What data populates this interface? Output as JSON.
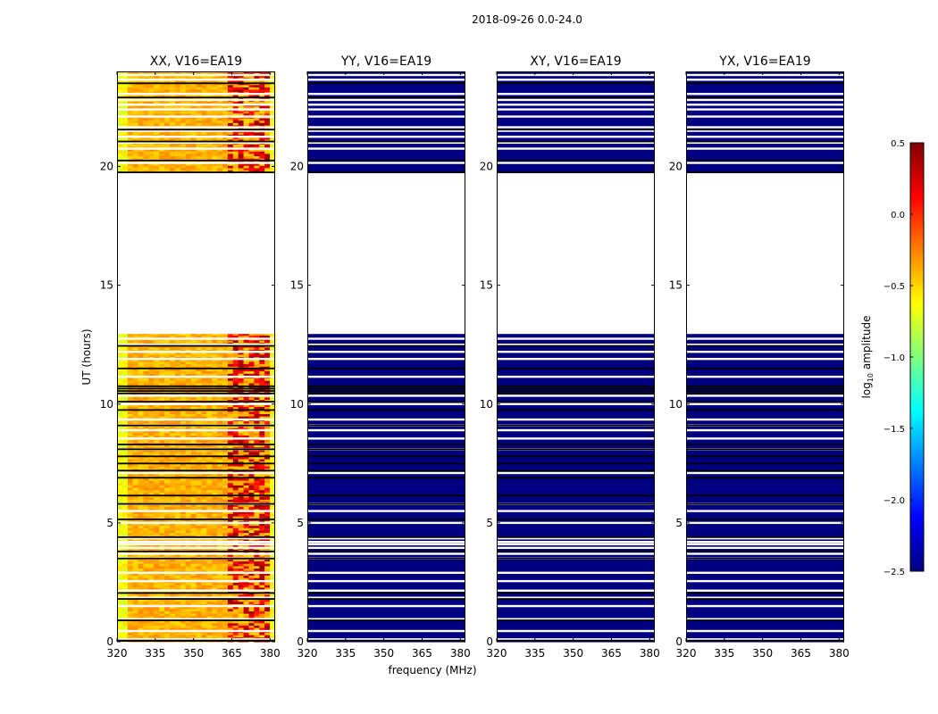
{
  "figure_title": "2018-09-26 0.0-24.0",
  "chart_data": {
    "type": "heatmap",
    "title": "2018-09-26 0.0-24.0",
    "xlabel": "frequency (MHz)",
    "ylabel": "UT (hours)",
    "xlim": [
      320,
      382
    ],
    "ylim": [
      0,
      24
    ],
    "x_ticks": [
      320,
      335,
      350,
      365,
      380
    ],
    "y_ticks": [
      0,
      5,
      10,
      15,
      20
    ],
    "data_time_ranges": [
      [
        0,
        12.95
      ],
      [
        19.75,
        24
      ]
    ],
    "panels": [
      {
        "title": "XX, V16=EA19",
        "pol": "XX",
        "baseline": "V16=EA19",
        "log10_amplitude_typical": -0.4,
        "log10_amplitude_max": 0.5,
        "bright_band_mhz": [
          363,
          380
        ]
      },
      {
        "title": "YY, V16=EA19",
        "pol": "YY",
        "baseline": "V16=EA19",
        "log10_amplitude_typical": -2.5
      },
      {
        "title": "XY, V16=EA19",
        "pol": "XY",
        "baseline": "V16=EA19",
        "log10_amplitude_typical": -2.5
      },
      {
        "title": "YX, V16=EA19",
        "pol": "YX",
        "baseline": "V16=EA19",
        "log10_amplitude_typical": -2.5
      }
    ],
    "white_gap_rows_ut": [
      0.1,
      0.45,
      0.95,
      1.5,
      1.85,
      2.15,
      2.55,
      2.9,
      3.5,
      3.7,
      3.95,
      4.1,
      4.2,
      4.35,
      5.0,
      5.5,
      5.8,
      7.1,
      8.1,
      8.55,
      8.9,
      9.1,
      9.35,
      10.0,
      10.35,
      11.15,
      11.9,
      12.2,
      12.5,
      12.75,
      20.15,
      20.75,
      21.0,
      21.25,
      21.5,
      21.65,
      22.1,
      22.4,
      22.6,
      22.8,
      23.05,
      23.65,
      23.85
    ],
    "black_flag_rows_ut": [
      0.05,
      0.9,
      1.8,
      2.05,
      3.5,
      3.8,
      4.4,
      5.15,
      5.8,
      6.15,
      6.9,
      7.2,
      7.5,
      7.8,
      8.1,
      8.3,
      9.1,
      9.75,
      10.1,
      10.45,
      10.55,
      10.65,
      10.75,
      11.5,
      12.45,
      19.75,
      20.25,
      21.05,
      21.55,
      22.9,
      23.5
    ],
    "colorbar": {
      "label": "log10 amplitude",
      "label_base": "log",
      "label_sub": "10",
      "label_rest": " amplitude",
      "min": -2.5,
      "max": 0.5,
      "ticks": [
        -2.5,
        -2.0,
        -1.5,
        -1.0,
        -0.5,
        0.0,
        0.5
      ],
      "tick_labels": [
        "−2.5",
        "−2.0",
        "−1.5",
        "−1.0",
        "−0.5",
        "0.0",
        "0.5"
      ],
      "colormap": "jet"
    }
  }
}
